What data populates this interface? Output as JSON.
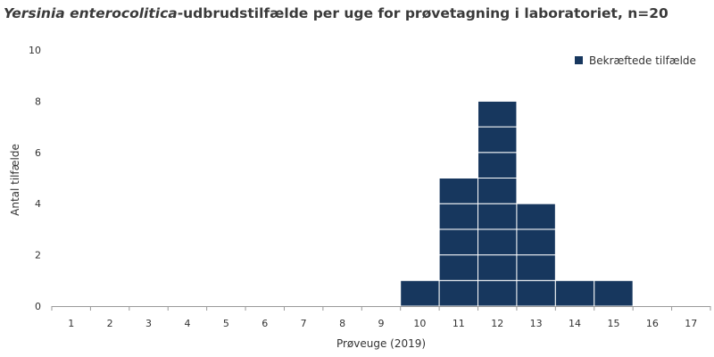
{
  "title": {
    "italic": "Yersinia enterocolitica",
    "rest": "-udbrudstilfælde per uge for prøvetagning i laboratoriet, n=20"
  },
  "chart_data": {
    "type": "bar",
    "style": "stacked unit boxes",
    "categories": [
      "1",
      "2",
      "3",
      "4",
      "5",
      "6",
      "7",
      "8",
      "9",
      "10",
      "11",
      "12",
      "13",
      "14",
      "15",
      "16",
      "17"
    ],
    "series": [
      {
        "name": "Bekræftede tilfælde",
        "values": [
          0,
          0,
          0,
          0,
          0,
          0,
          0,
          0,
          0,
          1,
          5,
          8,
          4,
          1,
          1,
          0,
          0
        ],
        "color": "#17375e"
      }
    ],
    "xlabel": "Prøveuge (2019)",
    "ylabel": "Antal tilfælde",
    "ylim": [
      0,
      10
    ],
    "yticks": [
      0,
      2,
      4,
      6,
      8,
      10
    ],
    "grid": false,
    "legend": "top-right"
  }
}
